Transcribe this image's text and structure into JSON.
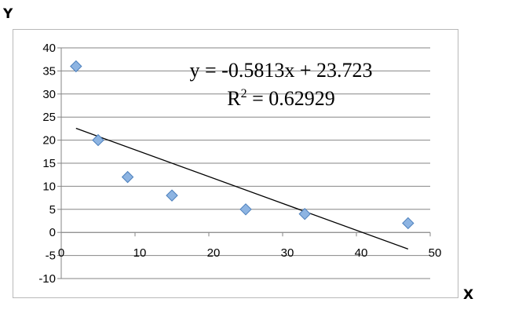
{
  "axis_letters": {
    "y": "Y",
    "x": "X"
  },
  "chart_data": {
    "type": "scatter",
    "title": "",
    "xlabel": "X",
    "ylabel": "Y",
    "xlim": [
      0,
      50
    ],
    "ylim": [
      -10,
      40
    ],
    "x_ticks": [
      "0",
      "10",
      "20",
      "30",
      "40",
      "50"
    ],
    "y_ticks": [
      "40",
      "35",
      "30",
      "25",
      "20",
      "15",
      "10",
      "5",
      "0",
      "-5",
      "-10"
    ],
    "grid": "horizontal",
    "points": [
      {
        "x": 2,
        "y": 36
      },
      {
        "x": 5,
        "y": 20
      },
      {
        "x": 9,
        "y": 12
      },
      {
        "x": 15,
        "y": 8
      },
      {
        "x": 25,
        "y": 5
      },
      {
        "x": 33,
        "y": 4
      },
      {
        "x": 47,
        "y": 2
      }
    ],
    "trendline": {
      "slope": -0.5813,
      "intercept": 23.723,
      "x_start": 2,
      "x_end": 47
    },
    "equation": {
      "line": "y = -0.5813x + 23.723",
      "r2_prefix": "R",
      "r2_sup": "2",
      "r2_rest": " = 0.62929"
    },
    "colors": {
      "marker_fill": "#8db4e2",
      "marker_stroke": "#4a7ebb",
      "trendline": "#000000",
      "grid": "#868686"
    }
  }
}
